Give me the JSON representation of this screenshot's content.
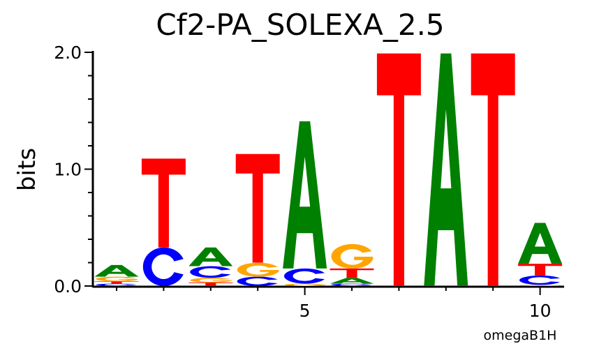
{
  "chart_data": {
    "type": "sequence-logo",
    "title": "Cf2-PA_SOLEXA_2.5",
    "ylabel": "bits",
    "xlabel": "",
    "footer": "omegaB1H",
    "ylim": [
      0,
      2
    ],
    "yticks": [
      "0.0",
      "1.0",
      "2.0"
    ],
    "xtick_labels": {
      "5": "5",
      "10": "10"
    },
    "colors": {
      "A": "#008000",
      "C": "#0000ff",
      "G": "#ffa500",
      "T": "#ff0000"
    },
    "positions": [
      {
        "pos": 1,
        "stack": [
          [
            "C",
            0.02
          ],
          [
            "T",
            0.02
          ],
          [
            "G",
            0.04
          ],
          [
            "A",
            0.1
          ]
        ]
      },
      {
        "pos": 2,
        "stack": [
          [
            "C",
            0.33
          ],
          [
            "T",
            0.76
          ]
        ]
      },
      {
        "pos": 3,
        "stack": [
          [
            "T",
            0.03
          ],
          [
            "G",
            0.04
          ],
          [
            "C",
            0.1
          ],
          [
            "A",
            0.16
          ]
        ]
      },
      {
        "pos": 4,
        "stack": [
          [
            "C",
            0.08
          ],
          [
            "G",
            0.12
          ],
          [
            "T",
            0.93
          ]
        ]
      },
      {
        "pos": 5,
        "stack": [
          [
            "G",
            0.02
          ],
          [
            "C",
            0.13
          ],
          [
            "A",
            1.26
          ]
        ]
      },
      {
        "pos": 6,
        "stack": [
          [
            "C",
            0.02
          ],
          [
            "A",
            0.05
          ],
          [
            "T",
            0.08
          ],
          [
            "G",
            0.21
          ]
        ]
      },
      {
        "pos": 7,
        "stack": [
          [
            "T",
            1.99
          ]
        ]
      },
      {
        "pos": 8,
        "stack": [
          [
            "A",
            1.99
          ]
        ]
      },
      {
        "pos": 9,
        "stack": [
          [
            "T",
            1.99
          ]
        ]
      },
      {
        "pos": 10,
        "stack": [
          [
            "G",
            0.01
          ],
          [
            "C",
            0.08
          ],
          [
            "T",
            0.1
          ],
          [
            "A",
            0.35
          ]
        ]
      }
    ]
  }
}
